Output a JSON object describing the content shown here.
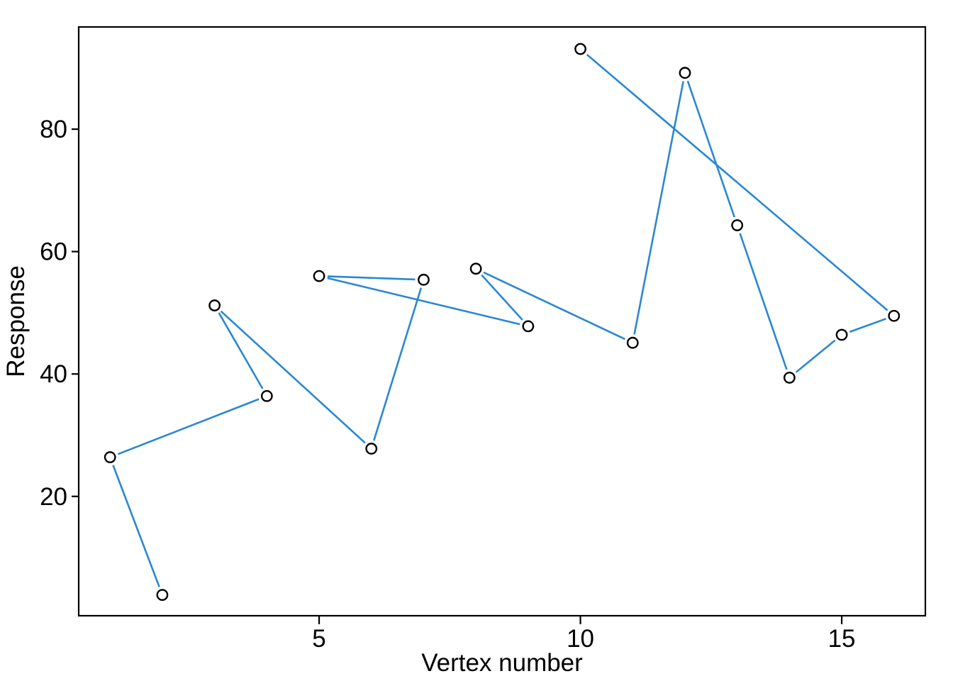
{
  "chart_data": {
    "type": "line",
    "title": "",
    "xlabel": "Vertex number",
    "ylabel": "Response",
    "x_ticks": [
      5,
      10,
      15
    ],
    "y_ticks": [
      20,
      40,
      60,
      80
    ],
    "xlim": [
      0.4,
      16.6
    ],
    "ylim": [
      0.5,
      96.7
    ],
    "grid": false,
    "legend_position": "none",
    "marker_style": "open-circle",
    "line_color": "#2B87D3",
    "marker_color": "#000000",
    "axis_color": "#000000",
    "background_color": "#FFFFFF",
    "x": [
      1,
      2,
      3,
      4,
      5,
      6,
      7,
      8,
      9,
      10,
      11,
      12,
      13,
      14,
      15,
      16
    ],
    "series": [
      {
        "name": "Response",
        "values": [
          26.4,
          3.9,
          51.2,
          36.4,
          56.0,
          27.8,
          55.4,
          57.2,
          47.8,
          93.1,
          45.1,
          89.2,
          64.3,
          39.4,
          46.4,
          49.5
        ]
      }
    ],
    "path_vertex_order": [
      2,
      1,
      4,
      3,
      6,
      7,
      5,
      9,
      8,
      11,
      12,
      13,
      14,
      15,
      16,
      10
    ]
  }
}
